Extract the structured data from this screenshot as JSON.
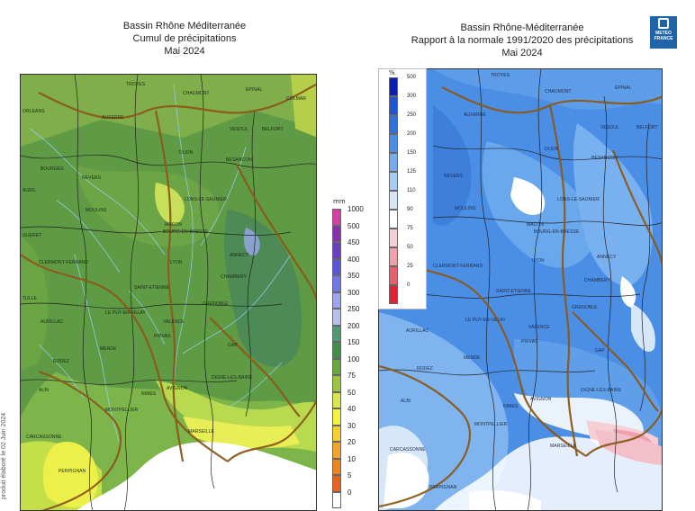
{
  "left_map": {
    "title_lines": [
      "Bassin Rhône Méditerranée",
      "Cumul de précipitations",
      "Mai 2024"
    ],
    "legend_unit": "mm",
    "legend": [
      {
        "label": "1000",
        "color": "#d440a8"
      },
      {
        "label": "500",
        "color": "#8a2fb0"
      },
      {
        "label": "450",
        "color": "#6a3fc2"
      },
      {
        "label": "400",
        "color": "#5d55d8"
      },
      {
        "label": "350",
        "color": "#6f78e6"
      },
      {
        "label": "300",
        "color": "#9aa6f0"
      },
      {
        "label": "250",
        "color": "#b7c0e6"
      },
      {
        "label": "200",
        "color": "#4f9a73"
      },
      {
        "label": "150",
        "color": "#3f8f4a"
      },
      {
        "label": "100",
        "color": "#67a83e"
      },
      {
        "label": "75",
        "color": "#9cc63e"
      },
      {
        "label": "50",
        "color": "#d9e84b"
      },
      {
        "label": "40",
        "color": "#f4f23e"
      },
      {
        "label": "30",
        "color": "#f6d12e"
      },
      {
        "label": "20",
        "color": "#f3a62a"
      },
      {
        "label": "10",
        "color": "#ee8620"
      },
      {
        "label": "5",
        "color": "#e6651c"
      },
      {
        "label": "0",
        "color": "#ffffff"
      }
    ],
    "places": [
      "TROYES",
      "CHAUMONT",
      "EPINAL",
      "COLMAR",
      "ORLEANS",
      "AUXERRE",
      "VESOUL",
      "BELFORT",
      "DIJON",
      "BESANCON",
      "BOURGES",
      "NEVERS",
      "AURIL",
      "MOULINS",
      "LONS-LE-SAUNIER",
      "MACON",
      "BOURG-EN-BRESSE",
      "GUERET",
      "LYON",
      "ANNECY",
      "CLERMONT-FERRAND",
      "SAINT-ETIENNE",
      "CHAMBERY",
      "GRENOBLE",
      "TULLE",
      "AURILLAC",
      "LE PUY-EN-VELAY",
      "VALENCE",
      "PRIVAS",
      "MENDE",
      "GAP",
      "RODEZ",
      "DIGNE-LES-BAINS",
      "AVIGNON",
      "NIMES",
      "ALBI",
      "MONTPELLIER",
      "MARSEILLE",
      "CARCASSONNE",
      "PERPIGNAN"
    ]
  },
  "right_map": {
    "title_lines": [
      "Bassin Rhône-Méditerranée",
      "Rapport à la normale 1991/2020 des précipitations",
      "Mai 2024"
    ],
    "legend_unit": "%",
    "legend": [
      {
        "label": "500",
        "color": "#0a1fb8"
      },
      {
        "label": "300",
        "color": "#1f55d4"
      },
      {
        "label": "250",
        "color": "#2f72de"
      },
      {
        "label": "200",
        "color": "#4b8ee6"
      },
      {
        "label": "150",
        "color": "#76abef"
      },
      {
        "label": "125",
        "color": "#a6cbf4"
      },
      {
        "label": "110",
        "color": "#d6e7fa"
      },
      {
        "label": "90",
        "color": "#ffffff"
      },
      {
        "label": "75",
        "color": "#f6cfd6"
      },
      {
        "label": "50",
        "color": "#f0a0ad"
      },
      {
        "label": "25",
        "color": "#e86070"
      },
      {
        "label": "0",
        "color": "#e02435"
      }
    ],
    "places": [
      "TROYES",
      "CHAUMONT",
      "EPINAL",
      "AUXERRE",
      "VESOUL",
      "BELFORT",
      "DIJON",
      "BESANCON",
      "NEVERS",
      "LONS-LE-SAUNIER",
      "MOULINS",
      "MACON",
      "BOURG-EN-BRESSE",
      "LYON",
      "ANNECY",
      "CLERMONT-FERRAND",
      "SAINT-ETIENNE",
      "CHAMBERY",
      "GRENOBLE",
      "LE PUY-EN-VELAY",
      "VALENCE",
      "AURILLAC",
      "PRIVAS",
      "GAP",
      "MENDE",
      "RODEZ",
      "DIGNE-LES-BAINS",
      "AVIGNON",
      "ALBI",
      "NIMES",
      "MONTPELLIER",
      "MARSEILLE",
      "CARCASSONNE",
      "PERPIGNAN"
    ]
  },
  "logo": {
    "line1": "METEO",
    "line2": "FRANCE"
  },
  "vertical_note": "produit élaboré le 02 Juin 2024",
  "colors": {
    "river": "#8fd3f0",
    "border": "#8b5a1a",
    "dept": "#222222"
  }
}
